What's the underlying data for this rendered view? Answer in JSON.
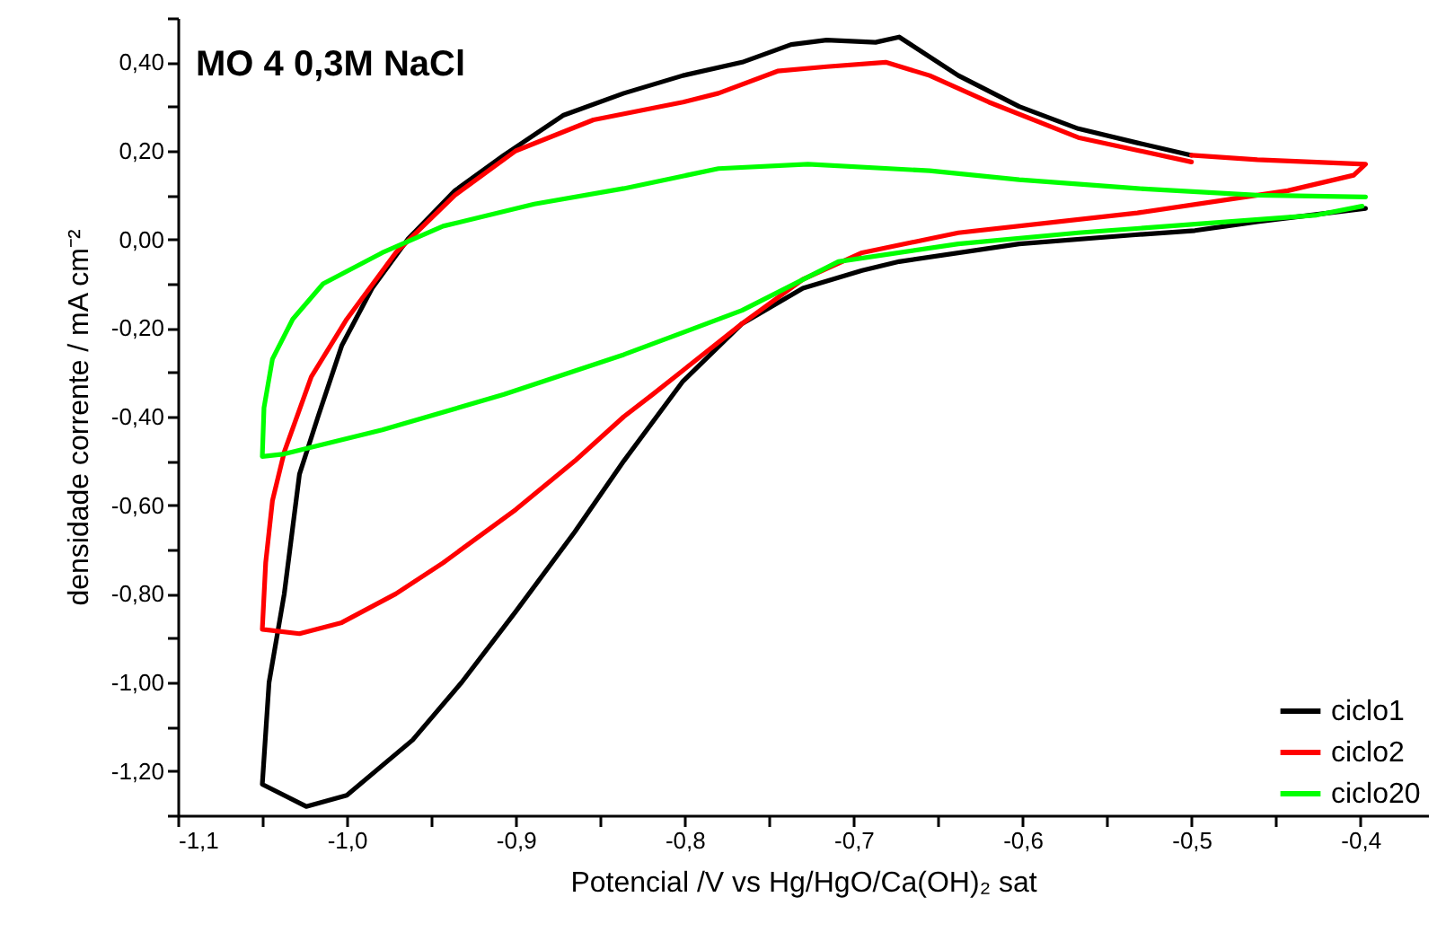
{
  "chart_data": {
    "type": "line",
    "title": "MO 4 0,3M NaCl",
    "xlabel": "Potencial /V vs Hg/HgO/Ca(OH)₂ sat",
    "ylabel": "densidade corrente / mA cm⁻²",
    "legend": "bottom right",
    "line_style": "solid",
    "xlim": [
      -1.1,
      -0.36
    ],
    "ylim": [
      -1.3,
      0.5
    ],
    "xticks": [
      {
        "value": -1.1,
        "label": "-1,1"
      },
      {
        "value": -1.05,
        "label": null
      },
      {
        "value": -1.0,
        "label": "-1,0"
      },
      {
        "value": -0.95,
        "label": null
      },
      {
        "value": -0.9,
        "label": "-0,9"
      },
      {
        "value": -0.85,
        "label": null
      },
      {
        "value": -0.8,
        "label": "-0,8"
      },
      {
        "value": -0.75,
        "label": null
      },
      {
        "value": -0.7,
        "label": "-0,7"
      },
      {
        "value": -0.65,
        "label": null
      },
      {
        "value": -0.6,
        "label": "-0,6"
      },
      {
        "value": -0.55,
        "label": null
      },
      {
        "value": -0.5,
        "label": "-0,5"
      },
      {
        "value": -0.45,
        "label": null
      },
      {
        "value": -0.4,
        "label": "-0,4"
      }
    ],
    "yticks": [
      {
        "value": -1.3,
        "label": null
      },
      {
        "value": -1.2,
        "label": "-1,20"
      },
      {
        "value": -1.1,
        "label": null
      },
      {
        "value": -1.0,
        "label": "-1,00"
      },
      {
        "value": -0.9,
        "label": null
      },
      {
        "value": -0.8,
        "label": "-0,80"
      },
      {
        "value": -0.7,
        "label": null
      },
      {
        "value": -0.6,
        "label": "-0,60"
      },
      {
        "value": -0.5,
        "label": null
      },
      {
        "value": -0.4,
        "label": "-0,40"
      },
      {
        "value": -0.3,
        "label": null
      },
      {
        "value": -0.2,
        "label": "-0,20"
      },
      {
        "value": -0.1,
        "label": null
      },
      {
        "value": 0,
        "label": "0,00"
      },
      {
        "value": 0.1,
        "label": null
      },
      {
        "value": 0.2,
        "label": "0,20"
      },
      {
        "value": 0.3,
        "label": null
      },
      {
        "value": 0.4,
        "label": "0,40"
      },
      {
        "value": 0.5,
        "label": null
      }
    ],
    "series": [
      {
        "name": "ciclo1",
        "color": "#000000",
        "x": [
          -0.5,
          -0.532,
          -0.567,
          -0.602,
          -0.638,
          -0.673,
          -0.687,
          -0.716,
          -0.737,
          -0.766,
          -0.801,
          -0.836,
          -0.872,
          -0.907,
          -0.936,
          -0.964,
          -0.985,
          -1.003,
          -1.017,
          -1.028,
          -1.037,
          -1.046,
          -1.05,
          -1.024,
          -1.0,
          -0.961,
          -0.932,
          -0.9,
          -0.865,
          -0.836,
          -0.801,
          -0.766,
          -0.73,
          -0.695,
          -0.673,
          -0.602,
          -0.535,
          -0.498,
          -0.461,
          -0.397
        ],
        "values": [
          0.19,
          0.218,
          0.25,
          0.3,
          0.37,
          0.457,
          0.445,
          0.45,
          0.44,
          0.4,
          0.37,
          0.33,
          0.28,
          0.19,
          0.11,
          0.0,
          -0.11,
          -0.24,
          -0.4,
          -0.53,
          -0.8,
          -1.0,
          -1.23,
          -1.28,
          -1.255,
          -1.13,
          -1.0,
          -0.84,
          -0.66,
          -0.5,
          -0.32,
          -0.19,
          -0.11,
          -0.07,
          -0.05,
          -0.01,
          0.01,
          0.02,
          0.04,
          0.07
        ]
      },
      {
        "name": "ciclo2",
        "color": "#ff0000",
        "x": [
          -0.5,
          -0.567,
          -0.62,
          -0.655,
          -0.681,
          -0.716,
          -0.745,
          -0.78,
          -0.801,
          -0.854,
          -0.9,
          -0.936,
          -0.971,
          -1.0,
          -1.021,
          -1.037,
          -1.044,
          -1.048,
          -1.05,
          -1.028,
          -1.003,
          -0.971,
          -0.943,
          -0.9,
          -0.865,
          -0.836,
          -0.819,
          -0.766,
          -0.73,
          -0.695,
          -0.638,
          -0.532,
          -0.443,
          -0.404,
          -0.397,
          -0.461,
          -0.5
        ],
        "values": [
          0.175,
          0.23,
          0.31,
          0.37,
          0.4,
          0.39,
          0.38,
          0.33,
          0.31,
          0.27,
          0.2,
          0.1,
          -0.03,
          -0.18,
          -0.31,
          -0.48,
          -0.59,
          -0.73,
          -0.88,
          -0.89,
          -0.865,
          -0.8,
          -0.73,
          -0.61,
          -0.5,
          -0.4,
          -0.35,
          -0.19,
          -0.09,
          -0.03,
          0.015,
          0.06,
          0.11,
          0.145,
          0.17,
          0.18,
          0.19
        ]
      },
      {
        "name": "ciclo20",
        "color": "#00ff00",
        "x": [
          -0.397,
          -0.461,
          -0.532,
          -0.602,
          -0.655,
          -0.727,
          -0.78,
          -0.836,
          -0.889,
          -0.943,
          -0.979,
          -1.014,
          -1.032,
          -1.044,
          -1.049,
          -1.05,
          -1.038,
          -0.979,
          -0.907,
          -0.836,
          -0.766,
          -0.709,
          -0.638,
          -0.567,
          -0.496,
          -0.426,
          -0.399
        ],
        "values": [
          0.096,
          0.1,
          0.115,
          0.135,
          0.155,
          0.17,
          0.16,
          0.115,
          0.08,
          0.03,
          -0.03,
          -0.1,
          -0.18,
          -0.27,
          -0.38,
          -0.49,
          -0.485,
          -0.43,
          -0.35,
          -0.26,
          -0.16,
          -0.05,
          -0.01,
          0.015,
          0.035,
          0.055,
          0.075
        ]
      }
    ]
  }
}
